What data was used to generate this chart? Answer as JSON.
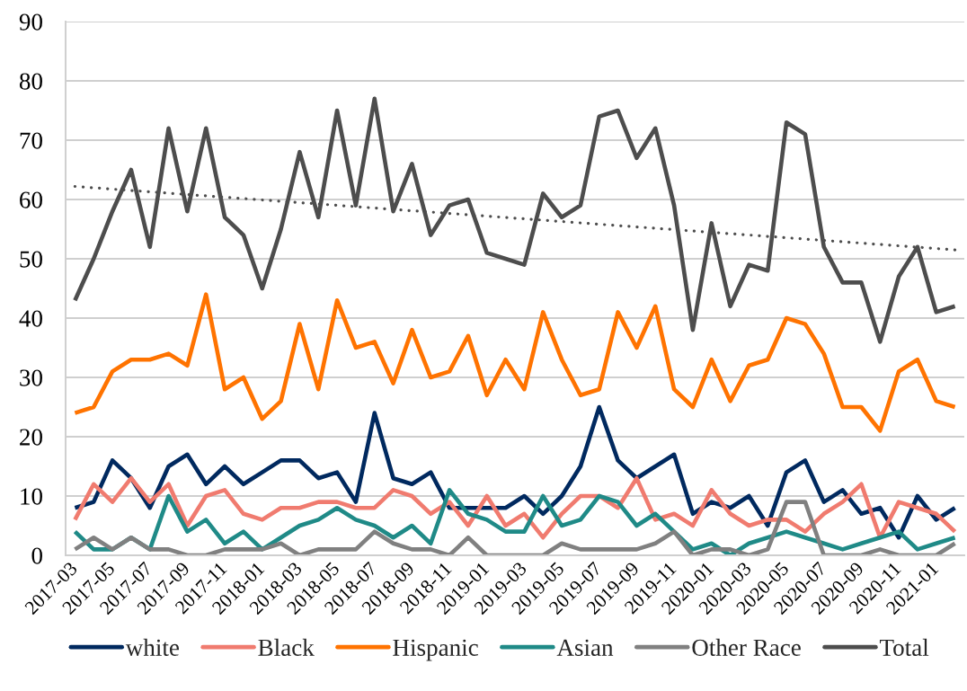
{
  "chart_data": {
    "type": "line",
    "x": [
      "2017-03",
      "2017-04",
      "2017-05",
      "2017-06",
      "2017-07",
      "2017-08",
      "2017-09",
      "2017-10",
      "2017-11",
      "2017-12",
      "2018-01",
      "2018-02",
      "2018-03",
      "2018-04",
      "2018-05",
      "2018-06",
      "2018-07",
      "2018-08",
      "2018-09",
      "2018-10",
      "2018-11",
      "2018-12",
      "2019-01",
      "2019-02",
      "2019-03",
      "2019-04",
      "2019-05",
      "2019-06",
      "2019-07",
      "2019-08",
      "2019-09",
      "2019-10",
      "2019-11",
      "2019-12",
      "2020-01",
      "2020-02",
      "2020-03",
      "2020-04",
      "2020-05",
      "2020-06",
      "2020-07",
      "2020-08",
      "2020-09",
      "2020-10",
      "2020-11",
      "2020-12",
      "2021-01",
      "2021-02"
    ],
    "xlim": [
      "2017-02-15",
      "2021-02-15"
    ],
    "xticks": [
      "2017-03",
      "2017-05",
      "2017-07",
      "2017-09",
      "2017-11",
      "2018-01",
      "2018-03",
      "2018-05",
      "2018-07",
      "2018-09",
      "2018-11",
      "2019-01",
      "2019-03",
      "2019-05",
      "2019-07",
      "2019-09",
      "2019-11",
      "2020-01",
      "2020-03",
      "2020-05",
      "2020-07",
      "2020-09",
      "2020-11",
      "2021-01"
    ],
    "ylim": [
      0,
      90
    ],
    "yticks": [
      0,
      10,
      20,
      30,
      40,
      50,
      60,
      70,
      80,
      90
    ],
    "grid": "y",
    "legend": "bottom",
    "line_style": "solid",
    "series": [
      {
        "name": "white",
        "color": "#00295f",
        "values": [
          8,
          9,
          16,
          13,
          8,
          15,
          17,
          12,
          15,
          12,
          14,
          16,
          16,
          13,
          14,
          9,
          24,
          13,
          12,
          14,
          8,
          8,
          8,
          8,
          10,
          7,
          10,
          15,
          25,
          16,
          13,
          15,
          17,
          7,
          9,
          8,
          10,
          5,
          14,
          16,
          9,
          11,
          7,
          8,
          3,
          10,
          6,
          8
        ]
      },
      {
        "name": "Black",
        "color": "#f07b6f",
        "values": [
          6,
          12,
          9,
          13,
          9,
          12,
          5,
          10,
          11,
          7,
          6,
          8,
          8,
          9,
          9,
          8,
          8,
          11,
          10,
          7,
          9,
          5,
          10,
          5,
          7,
          3,
          7,
          10,
          10,
          8,
          13,
          6,
          7,
          5,
          11,
          7,
          5,
          6,
          6,
          4,
          7,
          9,
          12,
          3,
          9,
          8,
          7,
          4
        ]
      },
      {
        "name": "Hispanic",
        "color": "#ff7300",
        "values": [
          24,
          25,
          31,
          33,
          33,
          34,
          32,
          44,
          28,
          30,
          23,
          26,
          39,
          28,
          43,
          35,
          36,
          29,
          38,
          30,
          31,
          37,
          27,
          33,
          28,
          41,
          33,
          27,
          28,
          41,
          35,
          42,
          28,
          25,
          33,
          26,
          32,
          33,
          40,
          39,
          34,
          25,
          25,
          21,
          31,
          33,
          26,
          25
        ]
      },
      {
        "name": "Asian",
        "color": "#1f8a87",
        "values": [
          4,
          1,
          1,
          3,
          1,
          10,
          4,
          6,
          2,
          4,
          1,
          3,
          5,
          6,
          8,
          6,
          5,
          3,
          5,
          2,
          11,
          7,
          6,
          4,
          4,
          10,
          5,
          6,
          10,
          9,
          5,
          7,
          4,
          1,
          2,
          0,
          2,
          3,
          4,
          3,
          2,
          1,
          2,
          3,
          4,
          1,
          2,
          3
        ]
      },
      {
        "name": "Other Race",
        "color": "#808080",
        "values": [
          1,
          3,
          1,
          3,
          1,
          1,
          0,
          0,
          1,
          1,
          1,
          2,
          0,
          1,
          1,
          1,
          4,
          2,
          1,
          1,
          0,
          3,
          0,
          0,
          0,
          0,
          2,
          1,
          1,
          1,
          1,
          2,
          4,
          0,
          1,
          1,
          0,
          1,
          9,
          9,
          0,
          0,
          0,
          1,
          0,
          0,
          0,
          2
        ]
      },
      {
        "name": "Total",
        "color": "#4d4d4d",
        "values": [
          43,
          50,
          58,
          65,
          52,
          72,
          58,
          72,
          57,
          54,
          45,
          55,
          68,
          57,
          75,
          59,
          77,
          58,
          66,
          54,
          59,
          60,
          51,
          50,
          49,
          61,
          57,
          59,
          74,
          75,
          67,
          72,
          59,
          38,
          56,
          42,
          49,
          48,
          73,
          71,
          52,
          46,
          46,
          36,
          47,
          52,
          41,
          42
        ]
      },
      {
        "type": "line",
        "x": [
          "2017-03",
          "2021-02"
        ],
        "values": [
          62.2,
          51.5
        ],
        "color": "#4d4d4d",
        "line_style": "dotted"
      }
    ]
  }
}
